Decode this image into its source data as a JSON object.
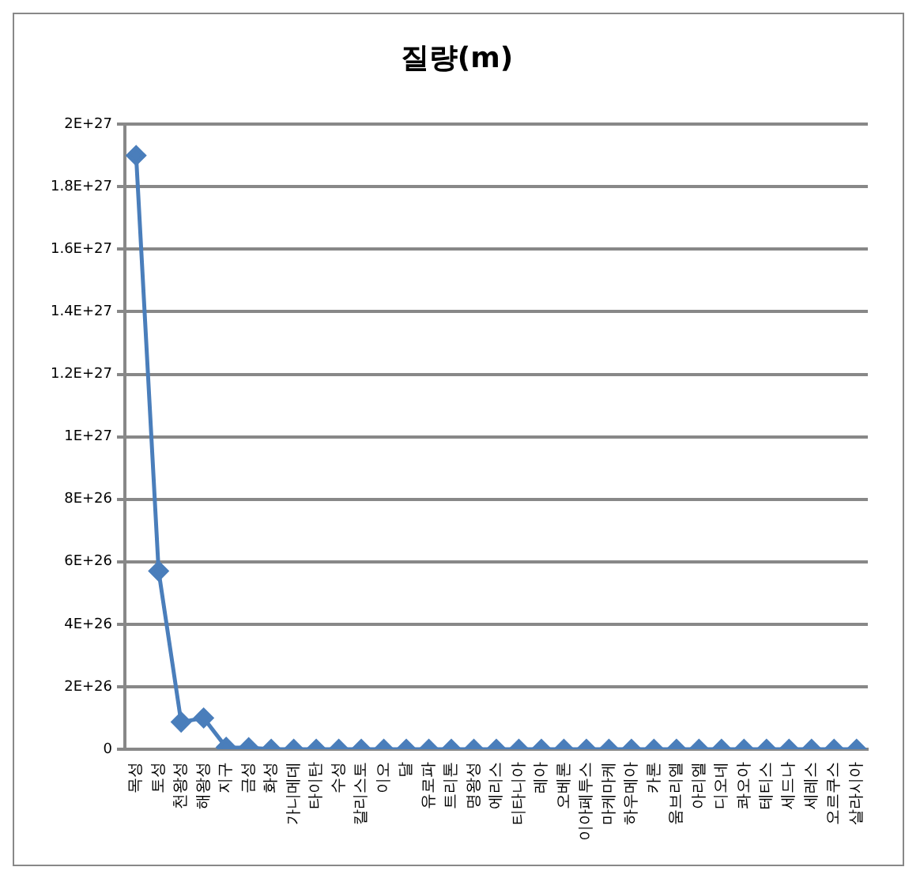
{
  "chart_data": {
    "type": "line",
    "title": "질량(m)",
    "categories": [
      "목성",
      "토성",
      "천왕성",
      "해왕성",
      "지구",
      "금성",
      "화성",
      "가니메데",
      "타이탄",
      "수성",
      "칼리스토",
      "이오",
      "달",
      "유로파",
      "트리톤",
      "명왕성",
      "에리스",
      "티타니아",
      "레아",
      "오베론",
      "이아페투스",
      "마케마케",
      "하우메아",
      "카론",
      "움브리엘",
      "아리엘",
      "디오네",
      "콰오아",
      "테티스",
      "세드나",
      "세레스",
      "오르쿠스",
      "살라시아"
    ],
    "series": [
      {
        "color": "#4a7ebb",
        "values": [
          1.9e+27,
          5.7e+26,
          8.7e+25,
          1e+26,
          6e+24,
          5e+24,
          0,
          0,
          0,
          0,
          0,
          0,
          0,
          0,
          0,
          0,
          0,
          0,
          0,
          0,
          0,
          0,
          0,
          0,
          0,
          0,
          0,
          0,
          0,
          0,
          0,
          0,
          0
        ]
      }
    ],
    "ylim": [
      0,
      2e+27
    ],
    "yticks": [
      0,
      {
        "value": 2e+26,
        "label": "2E+26"
      },
      {
        "value": 4e+26,
        "label": "4E+26"
      },
      {
        "value": 6e+26,
        "label": "6E+26"
      },
      {
        "value": 8e+26,
        "label": "8E+26"
      },
      {
        "value": 1e+27,
        "label": "1E+27"
      },
      {
        "value": 1.2e+27,
        "label": "1.2E+27"
      },
      {
        "value": 1.4e+27,
        "label": "1.4E+27"
      },
      {
        "value": 1.6e+27,
        "label": "1.6E+27"
      },
      {
        "value": 1.8e+27,
        "label": "1.8E+27"
      },
      {
        "value": 2e+27,
        "label": "2E+27"
      }
    ],
    "grid": "y",
    "legend": false,
    "marker": "diamond",
    "line_style": "solid"
  }
}
